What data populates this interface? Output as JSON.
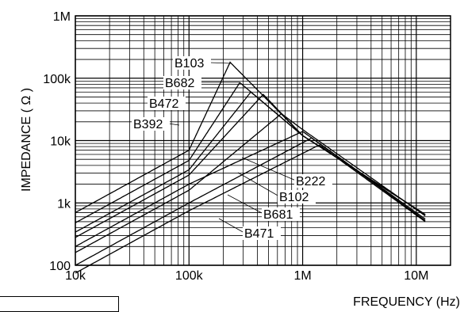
{
  "chart_data": {
    "type": "line",
    "xlabel": "FREQUENCY (Hz)",
    "ylabel": "IMPEDANCE ( Ω )",
    "x_scale": "log",
    "y_scale": "log",
    "xlim": [
      10000,
      20000000
    ],
    "ylim": [
      100,
      1000000
    ],
    "grid": true,
    "x_ticks": [
      {
        "value": 10000,
        "label": "10k"
      },
      {
        "value": 100000,
        "label": "100k"
      },
      {
        "value": 1000000,
        "label": "1M"
      },
      {
        "value": 10000000,
        "label": "10M"
      }
    ],
    "y_ticks": [
      {
        "value": 100,
        "label": "100"
      },
      {
        "value": 1000,
        "label": "1k"
      },
      {
        "value": 10000,
        "label": "10k"
      },
      {
        "value": 100000,
        "label": "100k"
      },
      {
        "value": 1000000,
        "label": "1M"
      }
    ],
    "series": [
      {
        "name": "B103",
        "points": [
          [
            10000,
            700
          ],
          [
            100000,
            7000
          ],
          [
            230000,
            180000
          ],
          [
            1000000,
            12000
          ],
          [
            12000000,
            650
          ]
        ]
      },
      {
        "name": "B682",
        "points": [
          [
            10000,
            480
          ],
          [
            100000,
            4800
          ],
          [
            280000,
            85000
          ],
          [
            1000000,
            12000
          ],
          [
            12000000,
            650
          ]
        ]
      },
      {
        "name": "B472",
        "points": [
          [
            10000,
            340
          ],
          [
            100000,
            3400
          ],
          [
            350000,
            60000
          ],
          [
            1000000,
            12000
          ],
          [
            12000000,
            650
          ]
        ]
      },
      {
        "name": "B392",
        "points": [
          [
            10000,
            280
          ],
          [
            100000,
            2800
          ],
          [
            450000,
            55000
          ],
          [
            1000000,
            12000
          ],
          [
            12000000,
            650
          ]
        ]
      },
      {
        "name": "B222",
        "points": [
          [
            10000,
            160
          ],
          [
            100000,
            1600
          ],
          [
            650000,
            27000
          ],
          [
            1000000,
            15000
          ],
          [
            12000000,
            620
          ]
        ]
      },
      {
        "name": "B102",
        "points": [
          [
            10000,
            200
          ],
          [
            100000,
            2000
          ],
          [
            1000000,
            14000
          ],
          [
            12000000,
            550
          ]
        ]
      },
      {
        "name": "B681",
        "points": [
          [
            10000,
            100
          ],
          [
            100000,
            1000
          ],
          [
            1200000,
            11000
          ],
          [
            12000000,
            520
          ]
        ]
      },
      {
        "name": "B471",
        "points": [
          [
            10000,
            75
          ],
          [
            100000,
            750
          ],
          [
            1400000,
            8500
          ],
          [
            12000000,
            500
          ]
        ]
      }
    ]
  }
}
